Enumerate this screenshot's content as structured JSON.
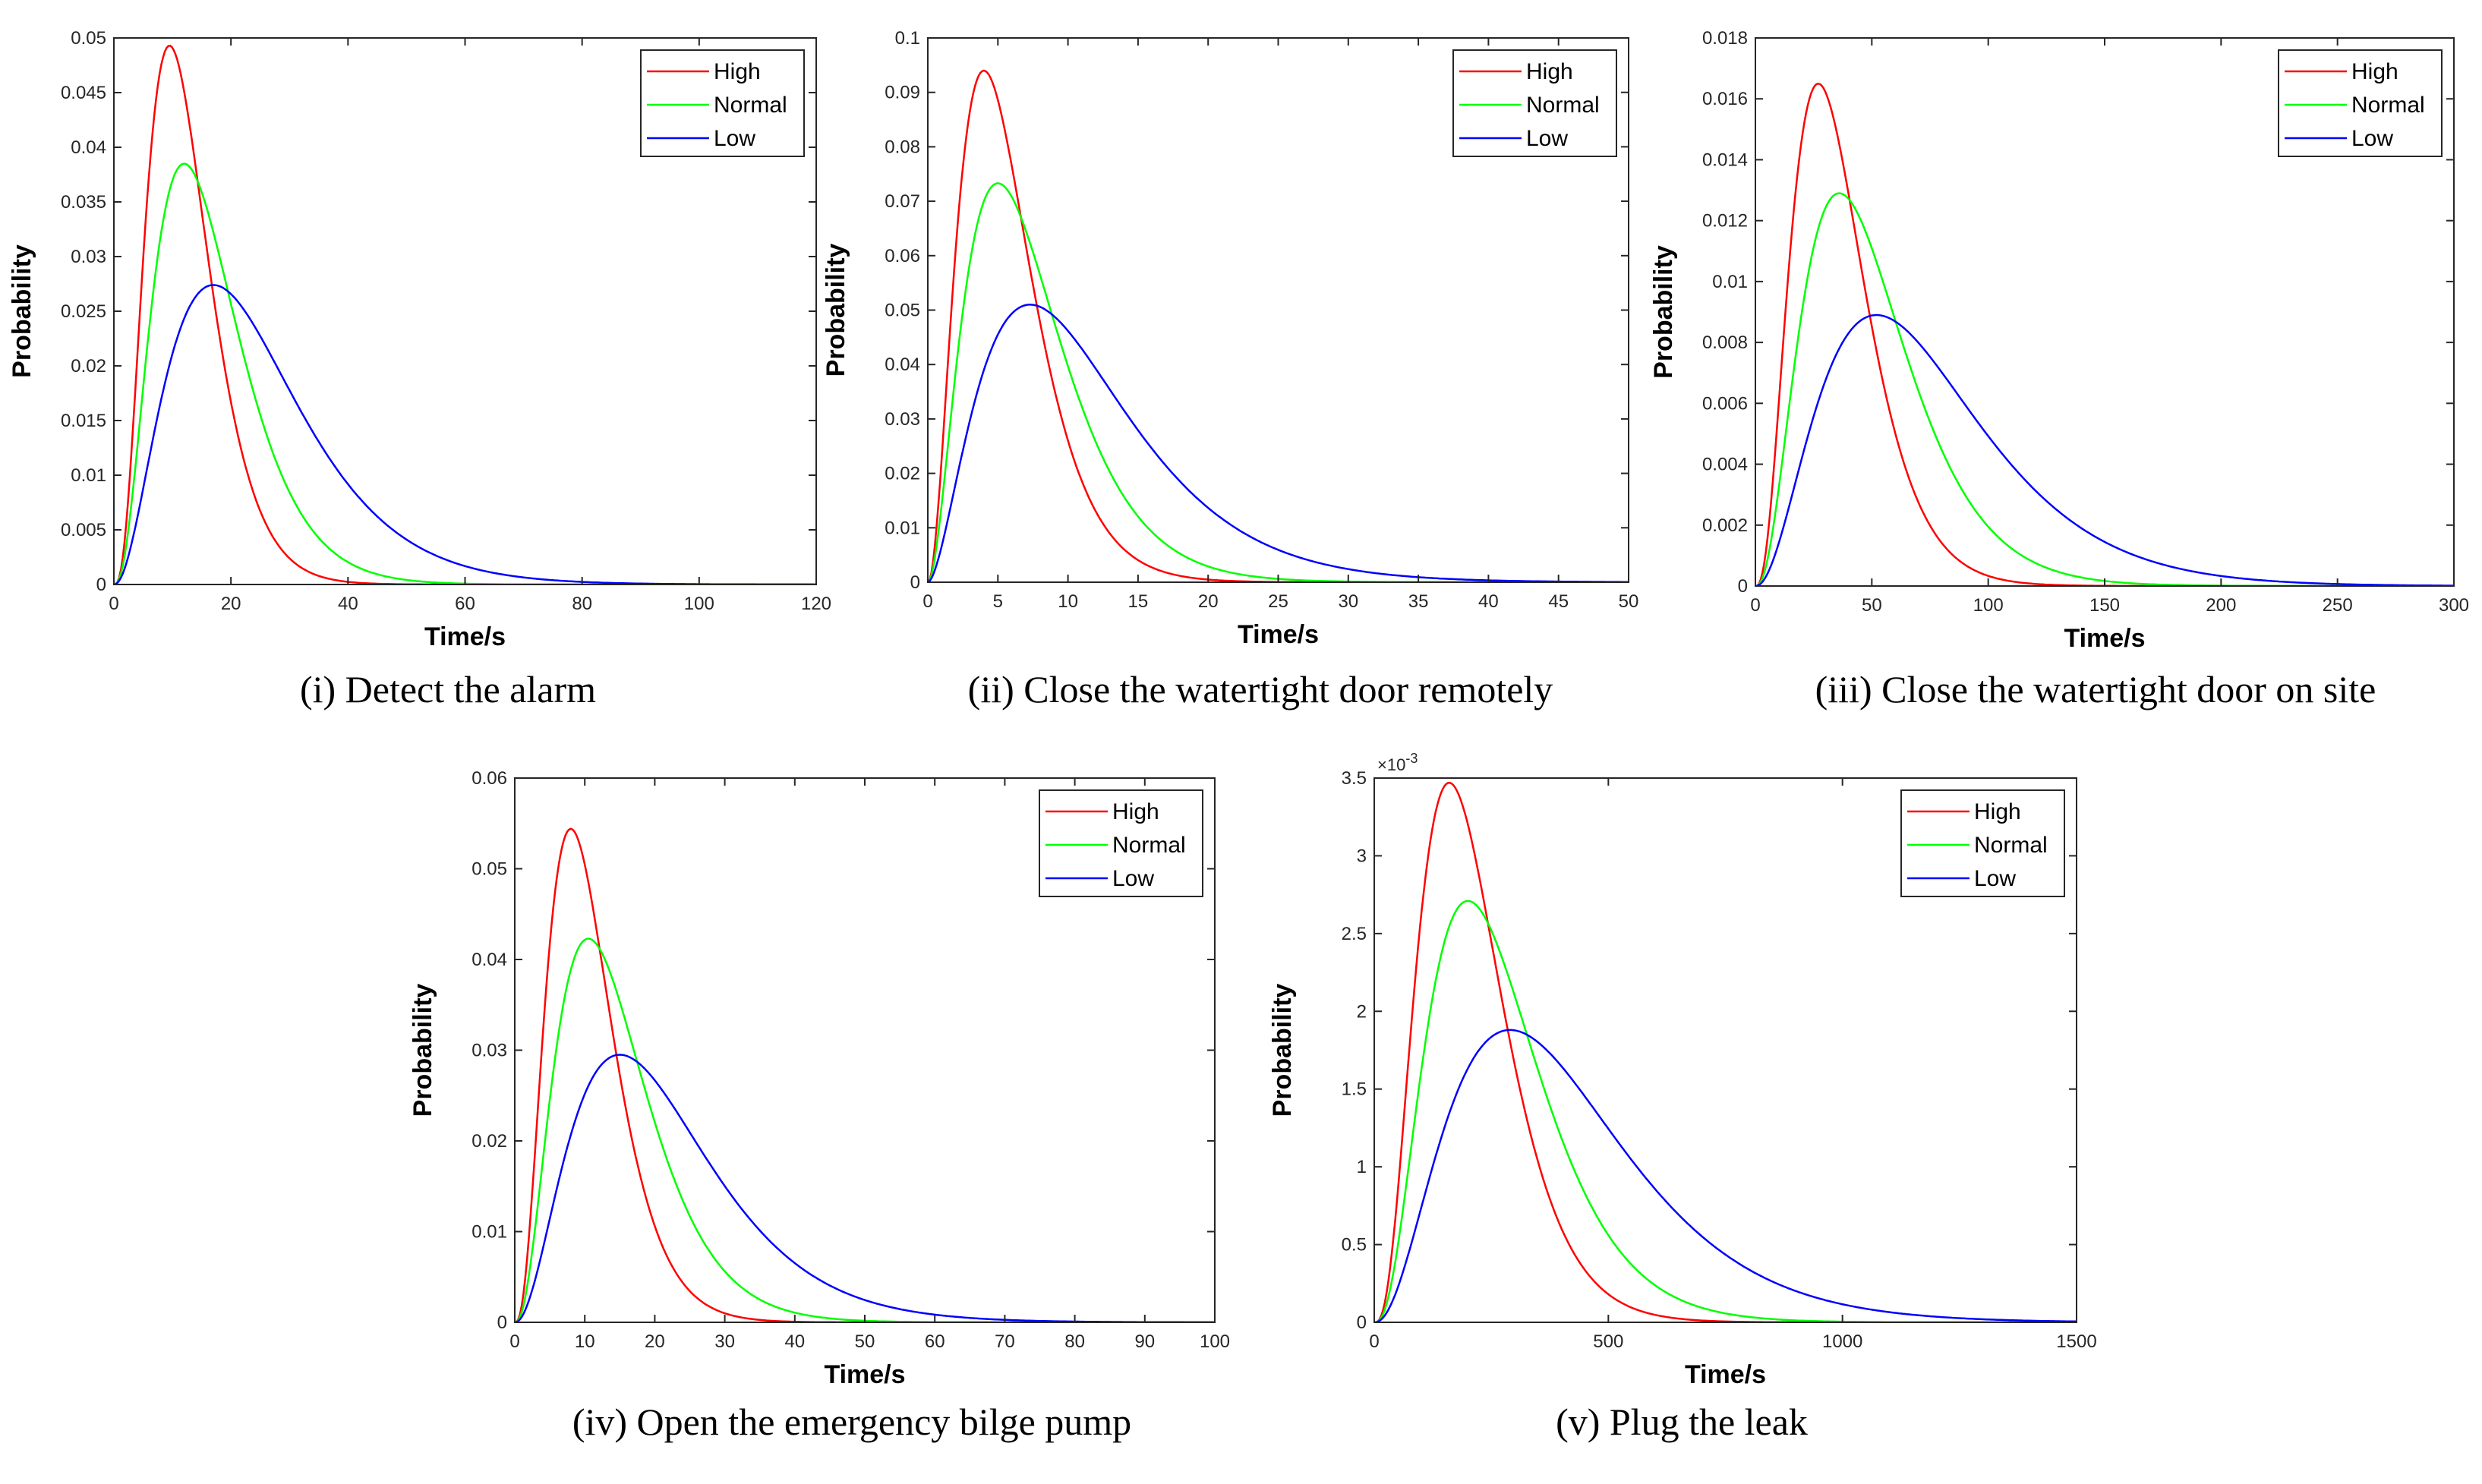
{
  "colors": {
    "High": "#ff0000",
    "Normal": "#00ff00",
    "Low": "#0000ff",
    "axis": "#262626"
  },
  "chart_data": [
    {
      "type": "line",
      "caption": "(i) Detect the alarm",
      "xlabel": "Time/s",
      "ylabel": "Probability",
      "xlim": [
        0,
        120
      ],
      "ylim": [
        0,
        0.05
      ],
      "xticks": [
        0,
        20,
        40,
        60,
        80,
        100,
        120
      ],
      "xtick_labels": [
        "0",
        "20",
        "40",
        "60",
        "80",
        "100",
        "120"
      ],
      "yticks": [
        0,
        0.005,
        0.01,
        0.015,
        0.02,
        0.025,
        0.03,
        0.035,
        0.04,
        0.045,
        0.05
      ],
      "ytick_labels": [
        "0",
        "0.005",
        "0.01",
        "0.015",
        "0.02",
        "0.025",
        "0.03",
        "0.035",
        "0.04",
        "0.045",
        "0.05"
      ],
      "exponent_label": "",
      "legend": {
        "position": "top-right",
        "entries": [
          "High",
          "Normal",
          "Low"
        ]
      },
      "series": [
        {
          "name": "High",
          "peak_x": 9.5,
          "peak_y": 0.0493,
          "shape_k": 3.0
        },
        {
          "name": "Normal",
          "peak_x": 12,
          "peak_y": 0.0385,
          "shape_k": 2.6
        },
        {
          "name": "Low",
          "peak_x": 17,
          "peak_y": 0.0274,
          "shape_k": 2.2
        }
      ]
    },
    {
      "type": "line",
      "caption": "(ii) Close the watertight door remotely",
      "xlabel": "Time/s",
      "ylabel": "Probability",
      "xlim": [
        0,
        50
      ],
      "ylim": [
        0,
        0.1
      ],
      "xticks": [
        0,
        5,
        10,
        15,
        20,
        25,
        30,
        35,
        40,
        45,
        50
      ],
      "xtick_labels": [
        "0",
        "5",
        "10",
        "15",
        "20",
        "25",
        "30",
        "35",
        "40",
        "45",
        "50"
      ],
      "yticks": [
        0,
        0.01,
        0.02,
        0.03,
        0.04,
        0.05,
        0.06,
        0.07,
        0.08,
        0.09,
        0.1
      ],
      "ytick_labels": [
        "0",
        "0.01",
        "0.02",
        "0.03",
        "0.04",
        "0.05",
        "0.06",
        "0.07",
        "0.08",
        "0.09",
        "0.1"
      ],
      "exponent_label": "",
      "legend": {
        "position": "top-right",
        "entries": [
          "High",
          "Normal",
          "Low"
        ]
      },
      "series": [
        {
          "name": "High",
          "peak_x": 4,
          "peak_y": 0.094,
          "shape_k": 2.2
        },
        {
          "name": "Normal",
          "peak_x": 5,
          "peak_y": 0.0733,
          "shape_k": 2.0
        },
        {
          "name": "Low",
          "peak_x": 7.3,
          "peak_y": 0.051,
          "shape_k": 1.8
        }
      ]
    },
    {
      "type": "line",
      "caption": "(iii) Close the watertight door on site",
      "xlabel": "Time/s",
      "ylabel": "Probability",
      "xlim": [
        0,
        300
      ],
      "ylim": [
        0,
        0.018
      ],
      "xticks": [
        0,
        50,
        100,
        150,
        200,
        250,
        300
      ],
      "xtick_labels": [
        "0",
        "50",
        "100",
        "150",
        "200",
        "250",
        "300"
      ],
      "yticks": [
        0,
        0.002,
        0.004,
        0.006,
        0.008,
        0.01,
        0.012,
        0.014,
        0.016,
        0.018
      ],
      "ytick_labels": [
        "0",
        "0.002",
        "0.004",
        "0.006",
        "0.008",
        "0.01",
        "0.012",
        "0.014",
        "0.016",
        "0.018"
      ],
      "exponent_label": "",
      "legend": {
        "position": "top-right",
        "entries": [
          "High",
          "Normal",
          "Low"
        ]
      },
      "series": [
        {
          "name": "High",
          "peak_x": 27,
          "peak_y": 0.0165,
          "shape_k": 2.8
        },
        {
          "name": "Normal",
          "peak_x": 36,
          "peak_y": 0.0129,
          "shape_k": 2.5
        },
        {
          "name": "Low",
          "peak_x": 52,
          "peak_y": 0.0089,
          "shape_k": 2.2
        }
      ]
    },
    {
      "type": "line",
      "caption": "(iv) Open the emergency bilge pump",
      "xlabel": "Time/s",
      "ylabel": "Probability",
      "xlim": [
        0,
        100
      ],
      "ylim": [
        0,
        0.06
      ],
      "xticks": [
        0,
        10,
        20,
        30,
        40,
        50,
        60,
        70,
        80,
        90,
        100
      ],
      "xtick_labels": [
        "0",
        "10",
        "20",
        "30",
        "40",
        "50",
        "60",
        "70",
        "80",
        "90",
        "100"
      ],
      "yticks": [
        0,
        0.01,
        0.02,
        0.03,
        0.04,
        0.05,
        0.06
      ],
      "ytick_labels": [
        "0",
        "0.01",
        "0.02",
        "0.03",
        "0.04",
        "0.05",
        "0.06"
      ],
      "exponent_label": "",
      "legend": {
        "position": "top-right",
        "entries": [
          "High",
          "Normal",
          "Low"
        ]
      },
      "series": [
        {
          "name": "High",
          "peak_x": 8,
          "peak_y": 0.0544,
          "shape_k": 2.8
        },
        {
          "name": "Normal",
          "peak_x": 10.5,
          "peak_y": 0.0423,
          "shape_k": 2.5
        },
        {
          "name": "Low",
          "peak_x": 15,
          "peak_y": 0.0295,
          "shape_k": 2.2
        }
      ]
    },
    {
      "type": "line",
      "caption": "(v) Plug the leak",
      "xlabel": "Time/s",
      "ylabel": "Probability",
      "xlim": [
        0,
        1500
      ],
      "ylim": [
        0,
        3.5
      ],
      "xticks": [
        0,
        500,
        1000,
        1500
      ],
      "xtick_labels": [
        "0",
        "500",
        "1000",
        "1500"
      ],
      "yticks": [
        0,
        0.5,
        1,
        1.5,
        2,
        2.5,
        3,
        3.5
      ],
      "ytick_labels": [
        "0",
        "0.5",
        "1",
        "1.5",
        "2",
        "2.5",
        "3",
        "3.5"
      ],
      "exponent_label": "×10",
      "exponent_power": "-3",
      "legend": {
        "position": "top-right",
        "entries": [
          "High",
          "Normal",
          "Low"
        ]
      },
      "series": [
        {
          "name": "High",
          "peak_x": 160,
          "peak_y": 3.47,
          "shape_k": 3.0
        },
        {
          "name": "Normal",
          "peak_x": 200,
          "peak_y": 2.71,
          "shape_k": 2.7
        },
        {
          "name": "Low",
          "peak_x": 290,
          "peak_y": 1.88,
          "shape_k": 2.3
        }
      ]
    }
  ]
}
